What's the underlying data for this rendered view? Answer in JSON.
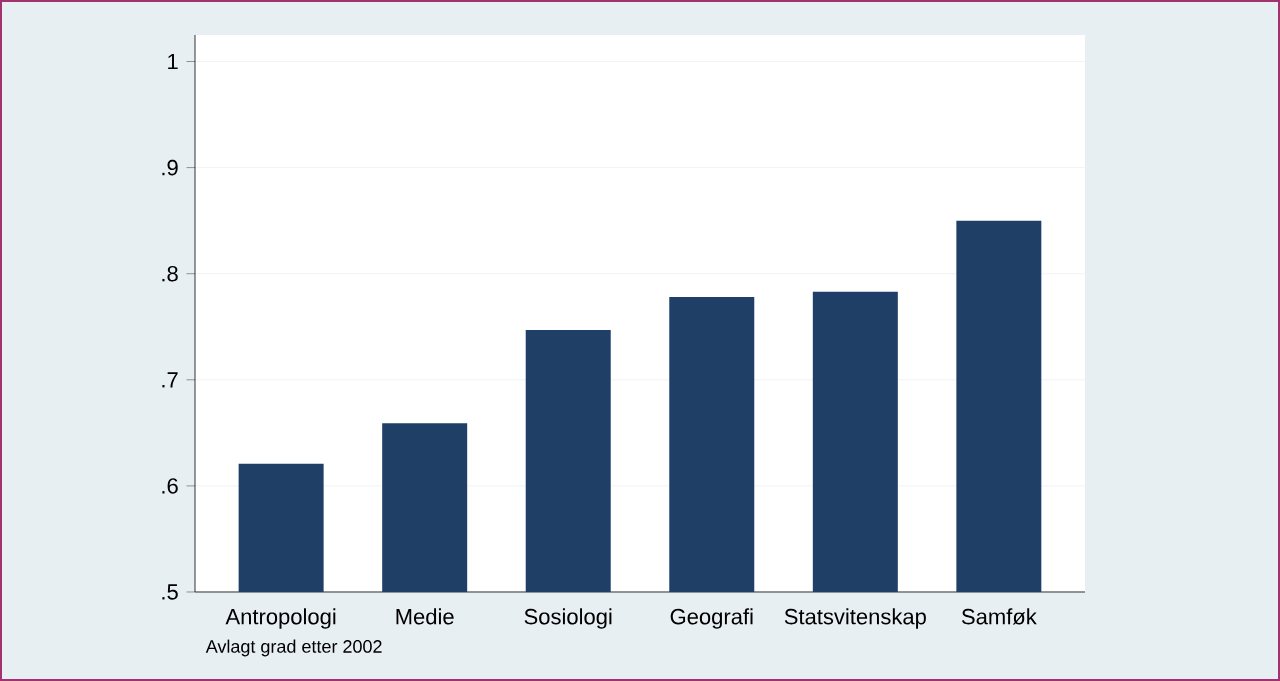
{
  "chart_data": {
    "type": "bar",
    "categories": [
      "Antropologi",
      "Medie",
      "Sosiologi",
      "Geografi",
      "Statsvitenskap",
      "Samføk"
    ],
    "values": [
      0.621,
      0.659,
      0.747,
      0.778,
      0.783,
      0.85
    ],
    "color": "#1f3f66",
    "ylim": [
      0.5,
      1.025
    ],
    "yticks": [
      {
        "value": 0.5,
        "label": ".5"
      },
      {
        "value": 0.6,
        "label": ".6"
      },
      {
        "value": 0.7,
        "label": ".7"
      },
      {
        "value": 0.8,
        "label": ".8"
      },
      {
        "value": 0.9,
        "label": ".9"
      },
      {
        "value": 1,
        "label": "1"
      }
    ],
    "grid": "y",
    "annotations": [
      "Avlagt grad etter 2002"
    ]
  }
}
